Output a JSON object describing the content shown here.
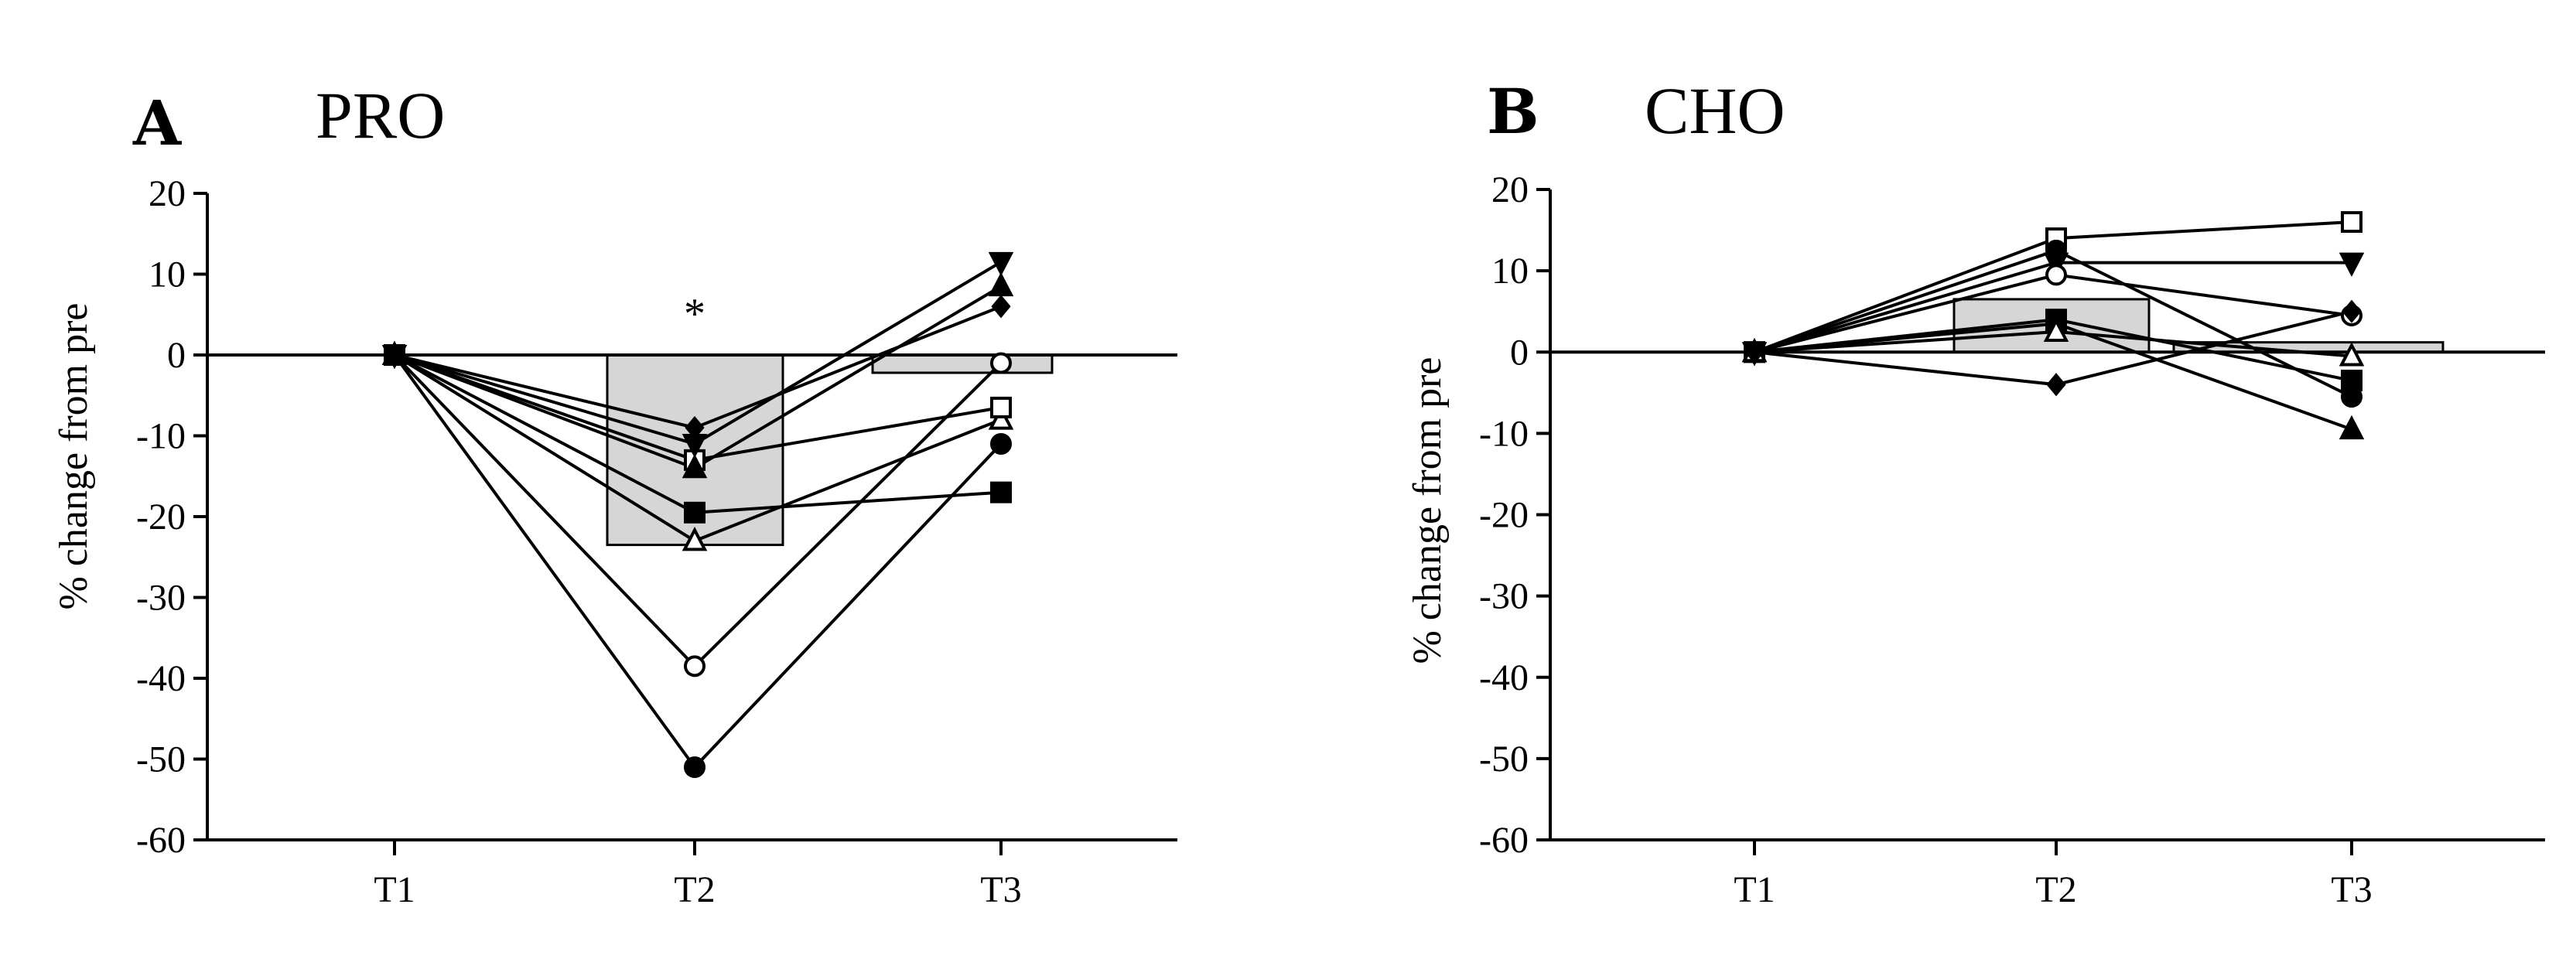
{
  "chart_data": [
    {
      "type": "line",
      "panel": "A",
      "title": "PRO",
      "ylabel": "% change from pre",
      "xlabel": "",
      "categories": [
        "T1",
        "T2",
        "T3"
      ],
      "ylim": [
        -60,
        20
      ],
      "yticks": [
        20,
        10,
        0,
        -10,
        -20,
        -30,
        -40,
        -50,
        -60
      ],
      "annotations": [
        {
          "text": "*",
          "category": "T2",
          "y": 7
        }
      ],
      "bars": {
        "T1": 0,
        "T2": -23.5,
        "T3": -2.2
      },
      "series": [
        {
          "name": "filled-circle",
          "marker": "circle-filled",
          "values": [
            0,
            -51,
            -11
          ]
        },
        {
          "name": "open-circle",
          "marker": "circle-open",
          "values": [
            0,
            -38.5,
            -1
          ]
        },
        {
          "name": "open-triangle",
          "marker": "triangle-open",
          "values": [
            0,
            -23,
            -8
          ]
        },
        {
          "name": "filled-square",
          "marker": "square-filled",
          "values": [
            0,
            -19.5,
            -17
          ]
        },
        {
          "name": "open-square",
          "marker": "square-open",
          "values": [
            0,
            -13,
            -6.5
          ]
        },
        {
          "name": "filled-triangle-up",
          "marker": "triangle-up-filled",
          "values": [
            0,
            -14,
            8.5
          ]
        },
        {
          "name": "filled-triangle-down",
          "marker": "triangle-down-filled",
          "values": [
            0,
            -11,
            11.5
          ]
        },
        {
          "name": "filled-diamond",
          "marker": "diamond-filled",
          "values": [
            0,
            -9,
            6
          ]
        }
      ]
    },
    {
      "type": "line",
      "panel": "B",
      "title": "CHO",
      "ylabel": "% change from pre",
      "xlabel": "",
      "categories": [
        "T1",
        "T2",
        "T3"
      ],
      "ylim": [
        -60,
        20
      ],
      "yticks": [
        20,
        10,
        0,
        -10,
        -20,
        -30,
        -40,
        -50,
        -60
      ],
      "annotations": [],
      "bars": {
        "T1": 0,
        "T2": 6.5,
        "T3": 1.2
      },
      "series": [
        {
          "name": "open-square",
          "marker": "square-open",
          "values": [
            0,
            14,
            16
          ]
        },
        {
          "name": "filled-circle",
          "marker": "circle-filled",
          "values": [
            0,
            12.5,
            -5.5
          ]
        },
        {
          "name": "filled-triangle-down",
          "marker": "triangle-down-filled",
          "values": [
            0,
            11,
            11
          ]
        },
        {
          "name": "open-circle",
          "marker": "circle-open",
          "values": [
            0,
            9.5,
            4.5
          ]
        },
        {
          "name": "filled-square",
          "marker": "square-filled",
          "values": [
            0,
            4,
            -3.5
          ]
        },
        {
          "name": "filled-triangle-up",
          "marker": "triangle-up-filled",
          "values": [
            0,
            3.5,
            -9.5
          ]
        },
        {
          "name": "open-triangle",
          "marker": "triangle-open",
          "values": [
            0,
            2.5,
            -0.5
          ]
        },
        {
          "name": "filled-diamond",
          "marker": "diamond-filled",
          "values": [
            0,
            -4,
            5
          ]
        }
      ]
    }
  ]
}
